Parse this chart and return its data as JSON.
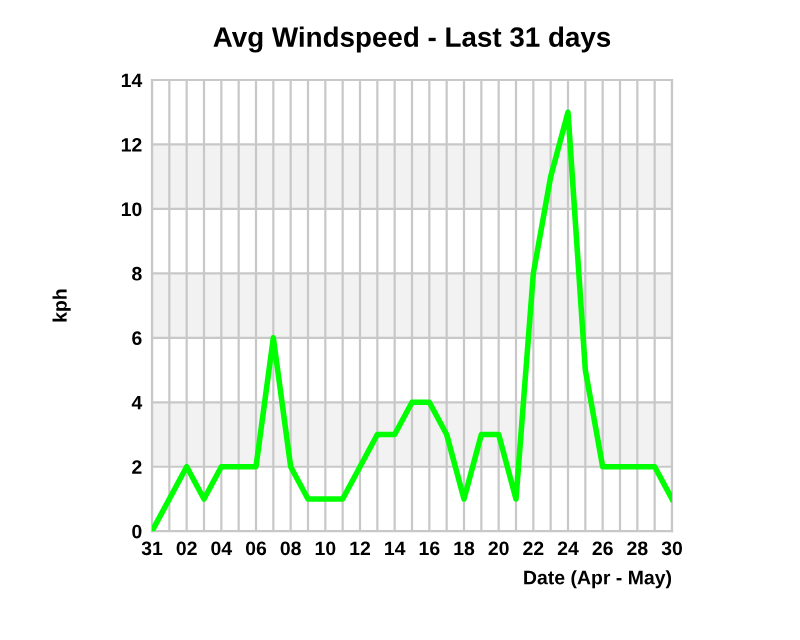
{
  "chart_data": {
    "type": "line",
    "title": "Avg Windspeed - Last 31 days",
    "xlabel": "Date (Apr - May)",
    "ylabel": "kph",
    "categories": [
      "31",
      null,
      "02",
      null,
      "04",
      null,
      "06",
      null,
      "08",
      null,
      "10",
      null,
      "12",
      null,
      "14",
      null,
      "16",
      null,
      "18",
      null,
      "20",
      null,
      "22",
      null,
      "24",
      null,
      "26",
      null,
      "28",
      null,
      "30"
    ],
    "series": [
      {
        "color": "#00ff00",
        "values": [
          0,
          1,
          2,
          1,
          2,
          2,
          2,
          6,
          2,
          1,
          1,
          1,
          2,
          3,
          3,
          4,
          4,
          3,
          1,
          3,
          3,
          1,
          8,
          11,
          13,
          5,
          2,
          2,
          2,
          2,
          1
        ]
      }
    ],
    "ylim": [
      0,
      14
    ],
    "yticks": [
      0,
      2,
      4,
      6,
      8,
      10,
      12,
      14
    ],
    "grid": true,
    "legend": false,
    "marker": "none",
    "line_style": "solid",
    "bands": [
      {
        "axis": "y",
        "from": 2,
        "to": 4,
        "color": "#f2f2f2"
      },
      {
        "axis": "y",
        "from": 6,
        "to": 8,
        "color": "#f2f2f2"
      },
      {
        "axis": "y",
        "from": 10,
        "to": 12,
        "color": "#f2f2f2"
      }
    ]
  }
}
